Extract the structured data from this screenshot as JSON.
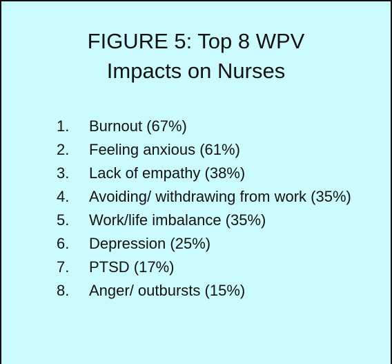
{
  "title": "FIGURE 5: Top 8 WPV Impacts on Nurses",
  "items": [
    {
      "number": "1.",
      "text": "Burnout (67%)"
    },
    {
      "number": "2.",
      "text": "Feeling anxious (61%)"
    },
    {
      "number": "3.",
      "text": "Lack of empathy (38%)"
    },
    {
      "number": "4.",
      "text": "Avoiding/ withdrawing from work (35%)"
    },
    {
      "number": "5.",
      "text": "Work/life imbalance (35%)"
    },
    {
      "number": "6.",
      "text": "Depression (25%)"
    },
    {
      "number": "7.",
      "text": "PTSD (17%)"
    },
    {
      "number": "8.",
      "text": "Anger/ outbursts (15%)"
    }
  ]
}
